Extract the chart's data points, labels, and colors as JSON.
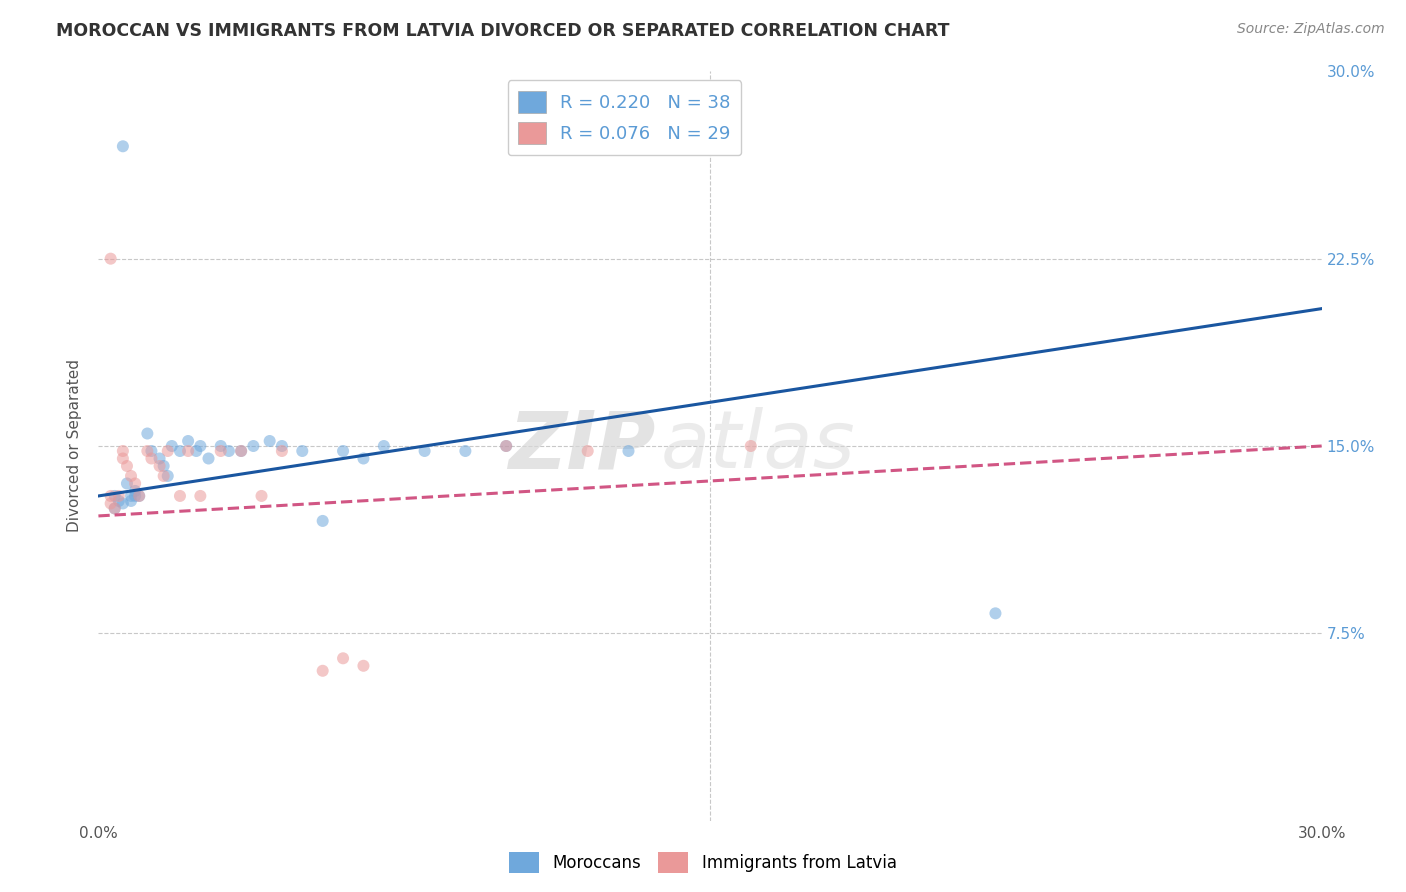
{
  "title": "MOROCCAN VS IMMIGRANTS FROM LATVIA DIVORCED OR SEPARATED CORRELATION CHART",
  "source": "Source: ZipAtlas.com",
  "ylabel": "Divorced or Separated",
  "xlim": [
    0.0,
    0.3
  ],
  "ylim": [
    0.0,
    0.3
  ],
  "legend_labels": [
    "Moroccans",
    "Immigrants from Latvia"
  ],
  "moroccan_R": 0.22,
  "moroccan_N": 38,
  "latvian_R": 0.076,
  "latvian_N": 29,
  "moroccan_color": "#6fa8dc",
  "latvian_color": "#ea9999",
  "moroccan_line_color": "#1a56a0",
  "latvian_line_color": "#cc4477",
  "background_color": "#ffffff",
  "grid_color": "#c8c8c8",
  "moroccan_x": [
    0.004,
    0.004,
    0.005,
    0.006,
    0.007,
    0.008,
    0.008,
    0.009,
    0.009,
    0.01,
    0.012,
    0.013,
    0.015,
    0.016,
    0.017,
    0.018,
    0.02,
    0.022,
    0.024,
    0.025,
    0.027,
    0.03,
    0.032,
    0.035,
    0.038,
    0.042,
    0.045,
    0.05,
    0.055,
    0.06,
    0.065,
    0.07,
    0.08,
    0.09,
    0.1,
    0.13,
    0.22,
    0.006
  ],
  "moroccan_y": [
    0.13,
    0.125,
    0.128,
    0.127,
    0.135,
    0.13,
    0.128,
    0.13,
    0.132,
    0.13,
    0.155,
    0.148,
    0.145,
    0.142,
    0.138,
    0.15,
    0.148,
    0.152,
    0.148,
    0.15,
    0.145,
    0.15,
    0.148,
    0.148,
    0.15,
    0.152,
    0.15,
    0.148,
    0.12,
    0.148,
    0.145,
    0.15,
    0.148,
    0.148,
    0.15,
    0.148,
    0.083,
    0.27
  ],
  "latvian_x": [
    0.003,
    0.003,
    0.004,
    0.005,
    0.006,
    0.006,
    0.007,
    0.008,
    0.009,
    0.01,
    0.012,
    0.013,
    0.015,
    0.016,
    0.017,
    0.02,
    0.022,
    0.025,
    0.03,
    0.035,
    0.04,
    0.045,
    0.055,
    0.06,
    0.065,
    0.1,
    0.12,
    0.16,
    0.003
  ],
  "latvian_y": [
    0.13,
    0.127,
    0.125,
    0.13,
    0.148,
    0.145,
    0.142,
    0.138,
    0.135,
    0.13,
    0.148,
    0.145,
    0.142,
    0.138,
    0.148,
    0.13,
    0.148,
    0.13,
    0.148,
    0.148,
    0.13,
    0.148,
    0.06,
    0.065,
    0.062,
    0.15,
    0.148,
    0.15,
    0.225
  ],
  "watermark_zip": "ZIP",
  "watermark_atlas": "atlas",
  "marker_size": 75,
  "marker_alpha": 0.55,
  "line_width": 2.2,
  "moroccan_line_x": [
    0.0,
    0.3
  ],
  "moroccan_line_y": [
    0.13,
    0.205
  ],
  "latvian_line_x": [
    0.0,
    0.3
  ],
  "latvian_line_y": [
    0.122,
    0.15
  ]
}
